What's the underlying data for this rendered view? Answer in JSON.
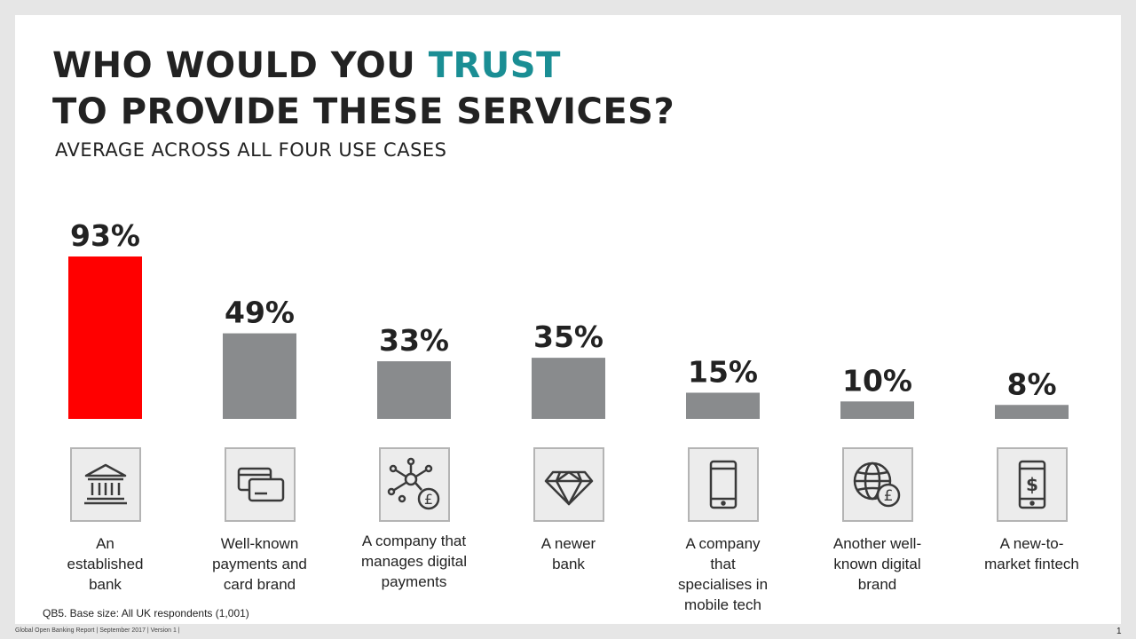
{
  "title": {
    "line1_prefix": "WHO WOULD YOU ",
    "line1_accent": "TRUST",
    "line2": "TO PROVIDE THESE SERVICES?"
  },
  "subtitle": "AVERAGE ACROSS ALL FOUR USE CASES",
  "colors": {
    "accent": "#1a8e94",
    "highlight_bar": "#ff0000",
    "bar": "#898b8d",
    "icon_stroke": "#3a3a3a"
  },
  "chart_data": {
    "type": "bar",
    "title": "",
    "xlabel": "",
    "ylabel": "",
    "categories": [
      "An established bank",
      "Well-known payments and card brand",
      "A company that manages digital payments",
      "A newer bank",
      "A company that specialises in mobile tech",
      "Another well-known digital brand",
      "A new-to-market fintech"
    ],
    "values": [
      93,
      49,
      33,
      35,
      15,
      10,
      8
    ],
    "value_labels": [
      "93%",
      "49%",
      "33%",
      "35%",
      "15%",
      "10%",
      "8%"
    ],
    "highlighted_index": 0,
    "ylim": [
      0,
      100
    ],
    "grid": false,
    "legend": "none"
  },
  "categories": [
    {
      "label": "An established bank",
      "icon": "bank-icon"
    },
    {
      "label": "Well-known payments and card brand",
      "icon": "cards-icon"
    },
    {
      "label": "A company that manages digital payments",
      "icon": "network-pound-icon"
    },
    {
      "label": "A newer bank",
      "icon": "diamond-icon"
    },
    {
      "label": "A company that specialises in mobile tech",
      "icon": "mobile-phone-icon"
    },
    {
      "label": "Another well-known digital brand",
      "icon": "globe-pound-icon"
    },
    {
      "label": "A new-to-market fintech",
      "icon": "phone-dollar-icon"
    }
  ],
  "base_note": "QB5. Base size: All UK respondents (1,001)",
  "footer": "Global Open Banking Report  |  September  2017  |  Version  1  |",
  "page_number": "1"
}
